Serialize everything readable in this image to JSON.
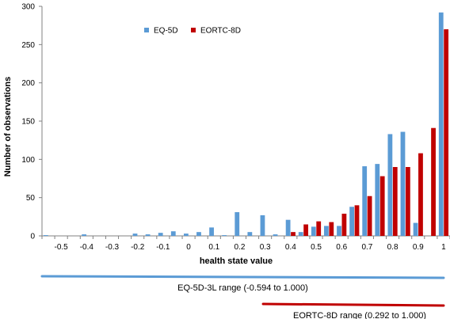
{
  "chart_data": {
    "type": "bar",
    "xlabel": "health state value",
    "ylabel": "Number of observations",
    "ylim": [
      0,
      300
    ],
    "yticks": [
      0,
      50,
      100,
      150,
      200,
      250,
      300
    ],
    "xtick_labels": [
      "-0.5",
      "-0.4",
      "-0.3",
      "-0.2",
      "-0.1",
      "0",
      "0.1",
      "0.2",
      "0.3",
      "0.4",
      "0.5",
      "0.6",
      "0.7",
      "0.8",
      "0.9",
      "1"
    ],
    "xtick_values": [
      -0.5,
      -0.4,
      -0.3,
      -0.2,
      -0.1,
      0,
      0.1,
      0.2,
      0.3,
      0.4,
      0.5,
      0.6,
      0.7,
      0.8,
      0.9,
      1.0
    ],
    "bin_centers": [
      -0.55,
      -0.5,
      -0.45,
      -0.4,
      -0.35,
      -0.3,
      -0.25,
      -0.2,
      -0.15,
      -0.1,
      -0.05,
      0,
      0.05,
      0.1,
      0.15,
      0.2,
      0.25,
      0.3,
      0.35,
      0.4,
      0.45,
      0.5,
      0.55,
      0.6,
      0.65,
      0.7,
      0.75,
      0.8,
      0.85,
      0.9,
      0.95,
      1.0
    ],
    "legend_position": "top-left",
    "grid": false,
    "series": [
      {
        "name": "EQ-5D",
        "color": "#5b9bd5",
        "values": [
          1,
          0,
          0,
          2,
          0,
          0,
          0,
          3,
          2,
          4,
          6,
          3,
          5,
          11,
          1,
          31,
          5,
          27,
          2,
          21,
          5,
          12,
          13,
          13,
          38,
          91,
          94,
          133,
          136,
          17,
          0,
          292
        ]
      },
      {
        "name": "EORTC-8D",
        "color": "#c00000",
        "values": [
          0,
          0,
          0,
          0,
          0,
          0,
          0,
          0,
          0,
          0,
          0,
          0,
          0,
          0,
          0,
          0,
          0,
          0,
          0,
          5,
          15,
          19,
          18,
          29,
          40,
          52,
          78,
          90,
          90,
          108,
          141,
          270
        ]
      }
    ],
    "ranges": [
      {
        "label": "EQ-5D-3L range (-0.594 to 1.000)",
        "from": -0.594,
        "to": 1.0,
        "color": "#5b9bd5"
      },
      {
        "label": "EORTC-8D range (0.292 to 1.000)",
        "from": 0.292,
        "to": 1.0,
        "color": "#c00000"
      }
    ]
  }
}
